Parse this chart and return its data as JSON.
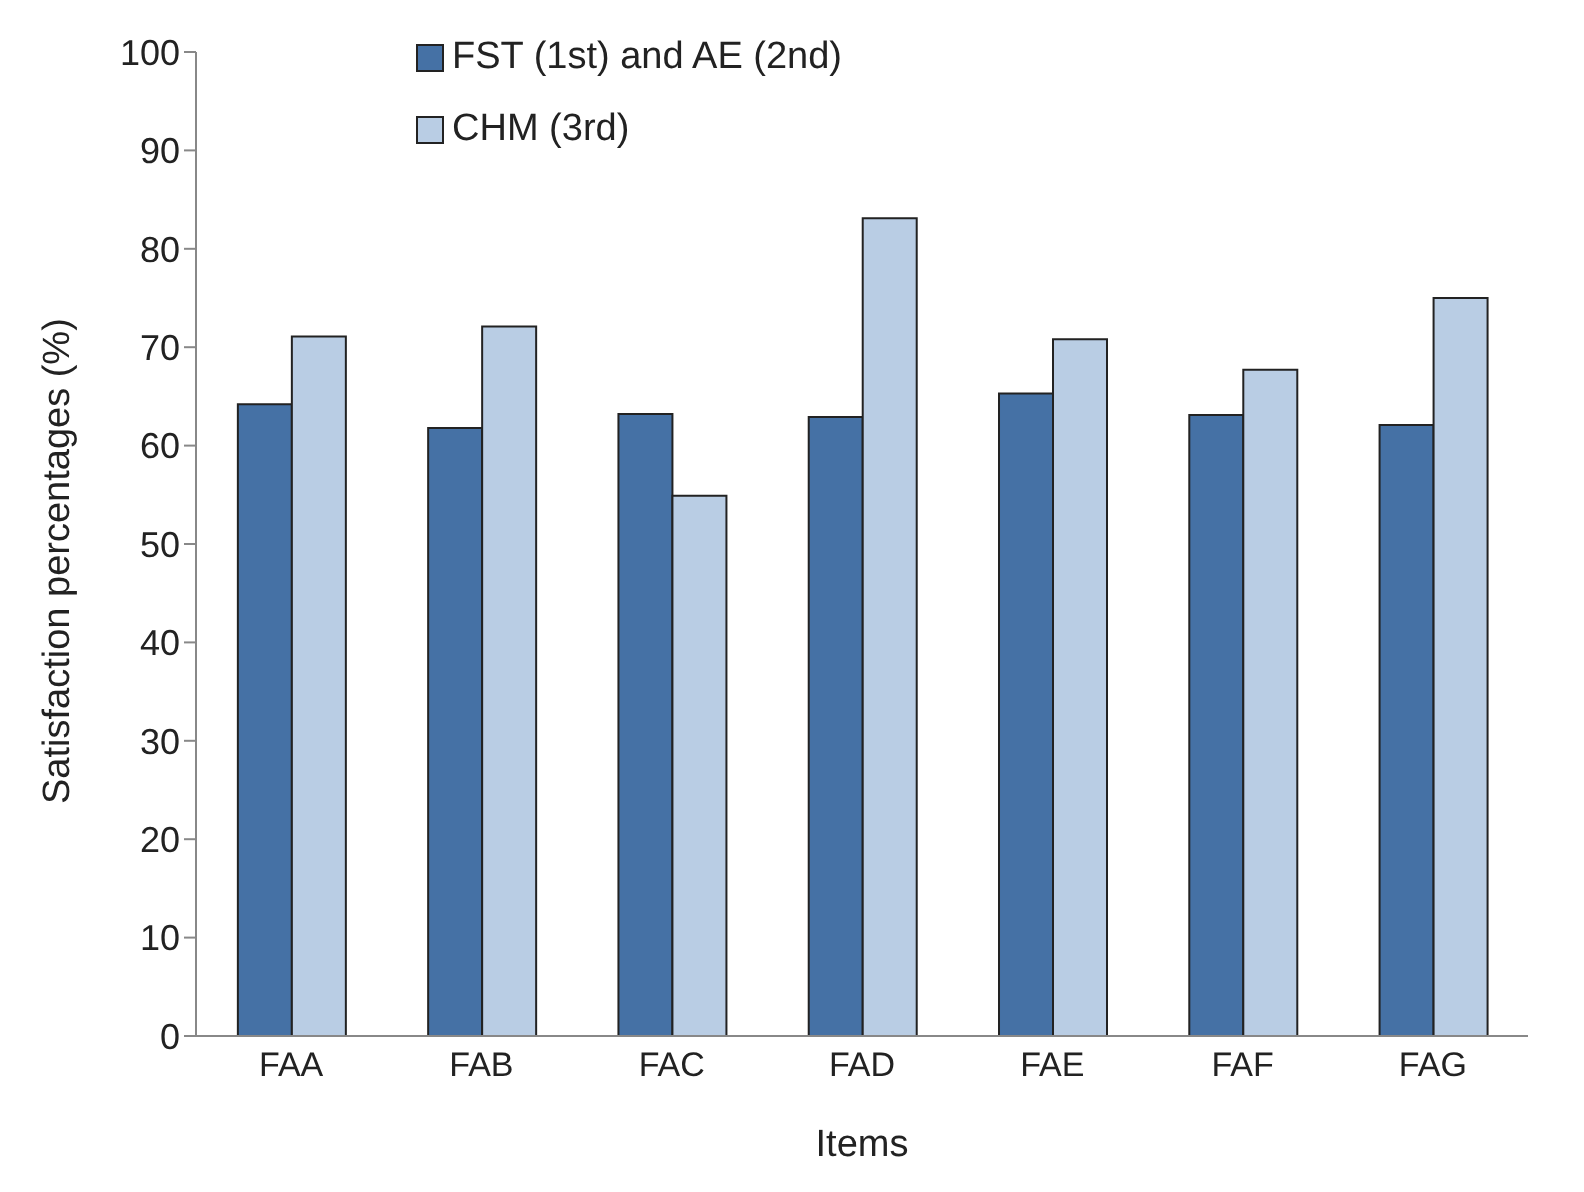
{
  "chart_data": {
    "type": "bar",
    "xlabel": "Items",
    "ylabel": "Satisfaction percentages (%)",
    "categories": [
      "FAA",
      "FAB",
      "FAC",
      "FAD",
      "FAE",
      "FAF",
      "FAG"
    ],
    "series": [
      {
        "name": "FST (1st) and AE (2nd)",
        "color": "#4571a5",
        "values": [
          64.2,
          61.8,
          63.2,
          62.9,
          65.3,
          63.1,
          62.1
        ]
      },
      {
        "name": "CHM (3rd)",
        "color": "#b9cde4",
        "values": [
          71.1,
          72.1,
          54.9,
          83.1,
          70.8,
          67.7,
          75.0
        ]
      }
    ],
    "ylim": [
      0,
      100
    ],
    "yticks": [
      0,
      10,
      20,
      30,
      40,
      50,
      60,
      70,
      80,
      90,
      100
    ],
    "grid": false,
    "legend": "top left"
  }
}
